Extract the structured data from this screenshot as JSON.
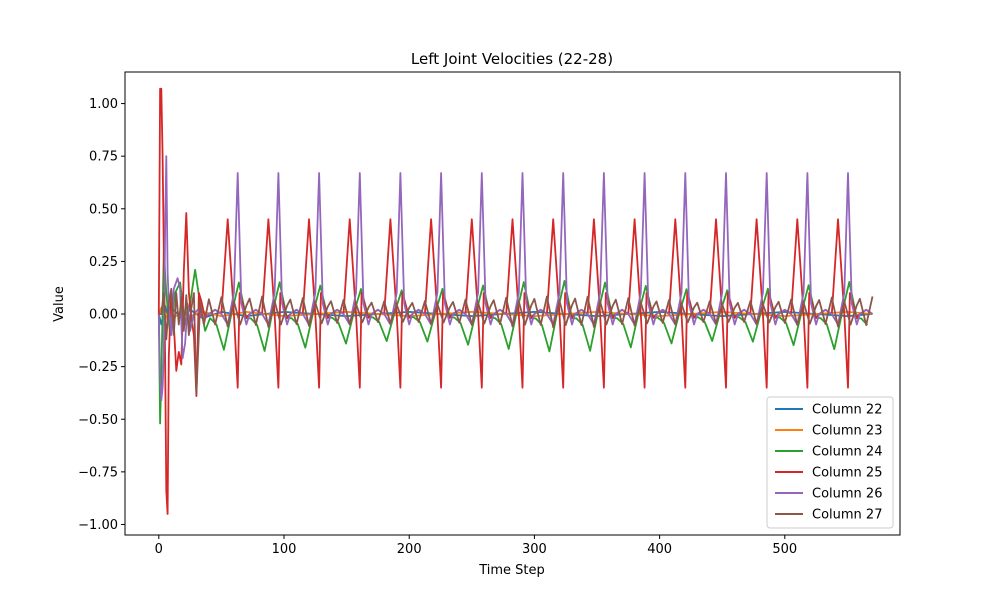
{
  "chart_data": {
    "type": "line",
    "title": "Left Joint Velocities (22-28)",
    "xlabel": "Time Step",
    "ylabel": "Value",
    "xlim": [
      -27,
      592
    ],
    "ylim": [
      -1.05,
      1.15
    ],
    "xticks": [
      0,
      100,
      200,
      300,
      400,
      500
    ],
    "yticks": [
      -1.0,
      -0.75,
      -0.5,
      -0.25,
      0.0,
      0.25,
      0.5,
      0.75,
      1.0
    ],
    "xtick_labels": [
      "0",
      "100",
      "200",
      "300",
      "400",
      "500"
    ],
    "ytick_labels": [
      "−1.00",
      "−0.75",
      "−0.50",
      "−0.25",
      "0.00",
      "0.25",
      "0.50",
      "0.75",
      "1.00"
    ],
    "legend_position": "lower-right",
    "grid": false,
    "gait_period": 32.5,
    "series": [
      {
        "name": "Column 22",
        "color": "#1f77b4",
        "x": [
          0,
          2,
          5,
          8,
          12,
          18,
          25,
          35,
          50,
          70,
          100,
          150,
          200,
          250,
          300,
          350,
          400,
          450,
          500,
          550,
          570
        ],
        "y": [
          0.0,
          -0.05,
          0.04,
          -0.03,
          0.02,
          -0.02,
          0.02,
          -0.02,
          0.01,
          -0.01,
          0.01,
          -0.01,
          0.01,
          -0.01,
          0.01,
          -0.01,
          0.01,
          -0.01,
          0.01,
          -0.01,
          0.0
        ]
      },
      {
        "name": "Column 23",
        "color": "#ff7f0e",
        "x": [
          0,
          2,
          5,
          8,
          12,
          18,
          25,
          35,
          50,
          70,
          100,
          150,
          200,
          250,
          300,
          350,
          400,
          450,
          500,
          550,
          570
        ],
        "y": [
          0.0,
          0.03,
          -0.03,
          0.02,
          -0.02,
          0.015,
          -0.01,
          0.01,
          -0.01,
          0.01,
          -0.01,
          0.01,
          -0.01,
          0.01,
          -0.01,
          0.01,
          -0.01,
          0.01,
          -0.01,
          0.01,
          0.0
        ]
      },
      {
        "name": "Column 24",
        "color": "#2ca02c",
        "x": [
          0,
          1,
          2,
          4,
          6,
          9,
          13,
          17,
          21,
          25,
          29,
          33,
          37,
          41,
          46,
          52,
          58,
          64,
          70
        ],
        "y": [
          0.0,
          -0.52,
          -0.3,
          0.3,
          0.1,
          -0.1,
          0.1,
          0.15,
          -0.05,
          0.05,
          0.21,
          0.05,
          -0.08,
          -0.02,
          -0.05,
          -0.17,
          0.0,
          0.15,
          -0.02
        ]
      },
      {
        "name": "Column 25",
        "color": "#d62728",
        "x": [
          0,
          1,
          2,
          3,
          4,
          5,
          6,
          7,
          8,
          10,
          12,
          14,
          16,
          18,
          20,
          22,
          24,
          26,
          28,
          30,
          32,
          34,
          37,
          40,
          45,
          50,
          55,
          60,
          63
        ],
        "y": [
          0.0,
          1.07,
          1.07,
          0.75,
          0.3,
          -0.2,
          -0.84,
          -0.95,
          -0.2,
          0.1,
          -0.05,
          -0.27,
          -0.18,
          -0.24,
          0.2,
          0.48,
          0.1,
          -0.02,
          -0.1,
          -0.39,
          0.1,
          0.06,
          -0.02,
          0.0,
          0.02,
          0.0,
          0.45,
          0.0,
          -0.35
        ]
      },
      {
        "name": "Column 26",
        "color": "#9467bd",
        "x": [
          0,
          1,
          2,
          3,
          4,
          5,
          6,
          7,
          8,
          10,
          12,
          15,
          17,
          19,
          21,
          23,
          25,
          28,
          31,
          35,
          40,
          45,
          50,
          55,
          60,
          63,
          66,
          70
        ],
        "y": [
          0.0,
          -0.3,
          -0.41,
          -0.35,
          -0.2,
          0.4,
          0.75,
          0.2,
          0.05,
          -0.1,
          0.12,
          0.17,
          0.12,
          -0.21,
          -0.14,
          0.05,
          -0.08,
          0.0,
          0.02,
          -0.02,
          0.0,
          0.02,
          0.0,
          -0.05,
          0.1,
          0.67,
          0.05,
          -0.05
        ]
      },
      {
        "name": "Column 27",
        "color": "#8c564b",
        "x": [
          0,
          2,
          4,
          6,
          8,
          10,
          12,
          14,
          16,
          18,
          20,
          22,
          24,
          26,
          28,
          30,
          33,
          36,
          40,
          45,
          50,
          55,
          60,
          65,
          70
        ],
        "y": [
          0.0,
          0.0,
          0.1,
          -0.12,
          0.05,
          0.12,
          -0.1,
          0.1,
          -0.05,
          0.08,
          -0.08,
          0.09,
          -0.1,
          0.03,
          0.1,
          -0.38,
          0.05,
          -0.05,
          0.07,
          -0.05,
          0.08,
          -0.06,
          0.06,
          -0.05,
          0.04
        ]
      }
    ]
  }
}
